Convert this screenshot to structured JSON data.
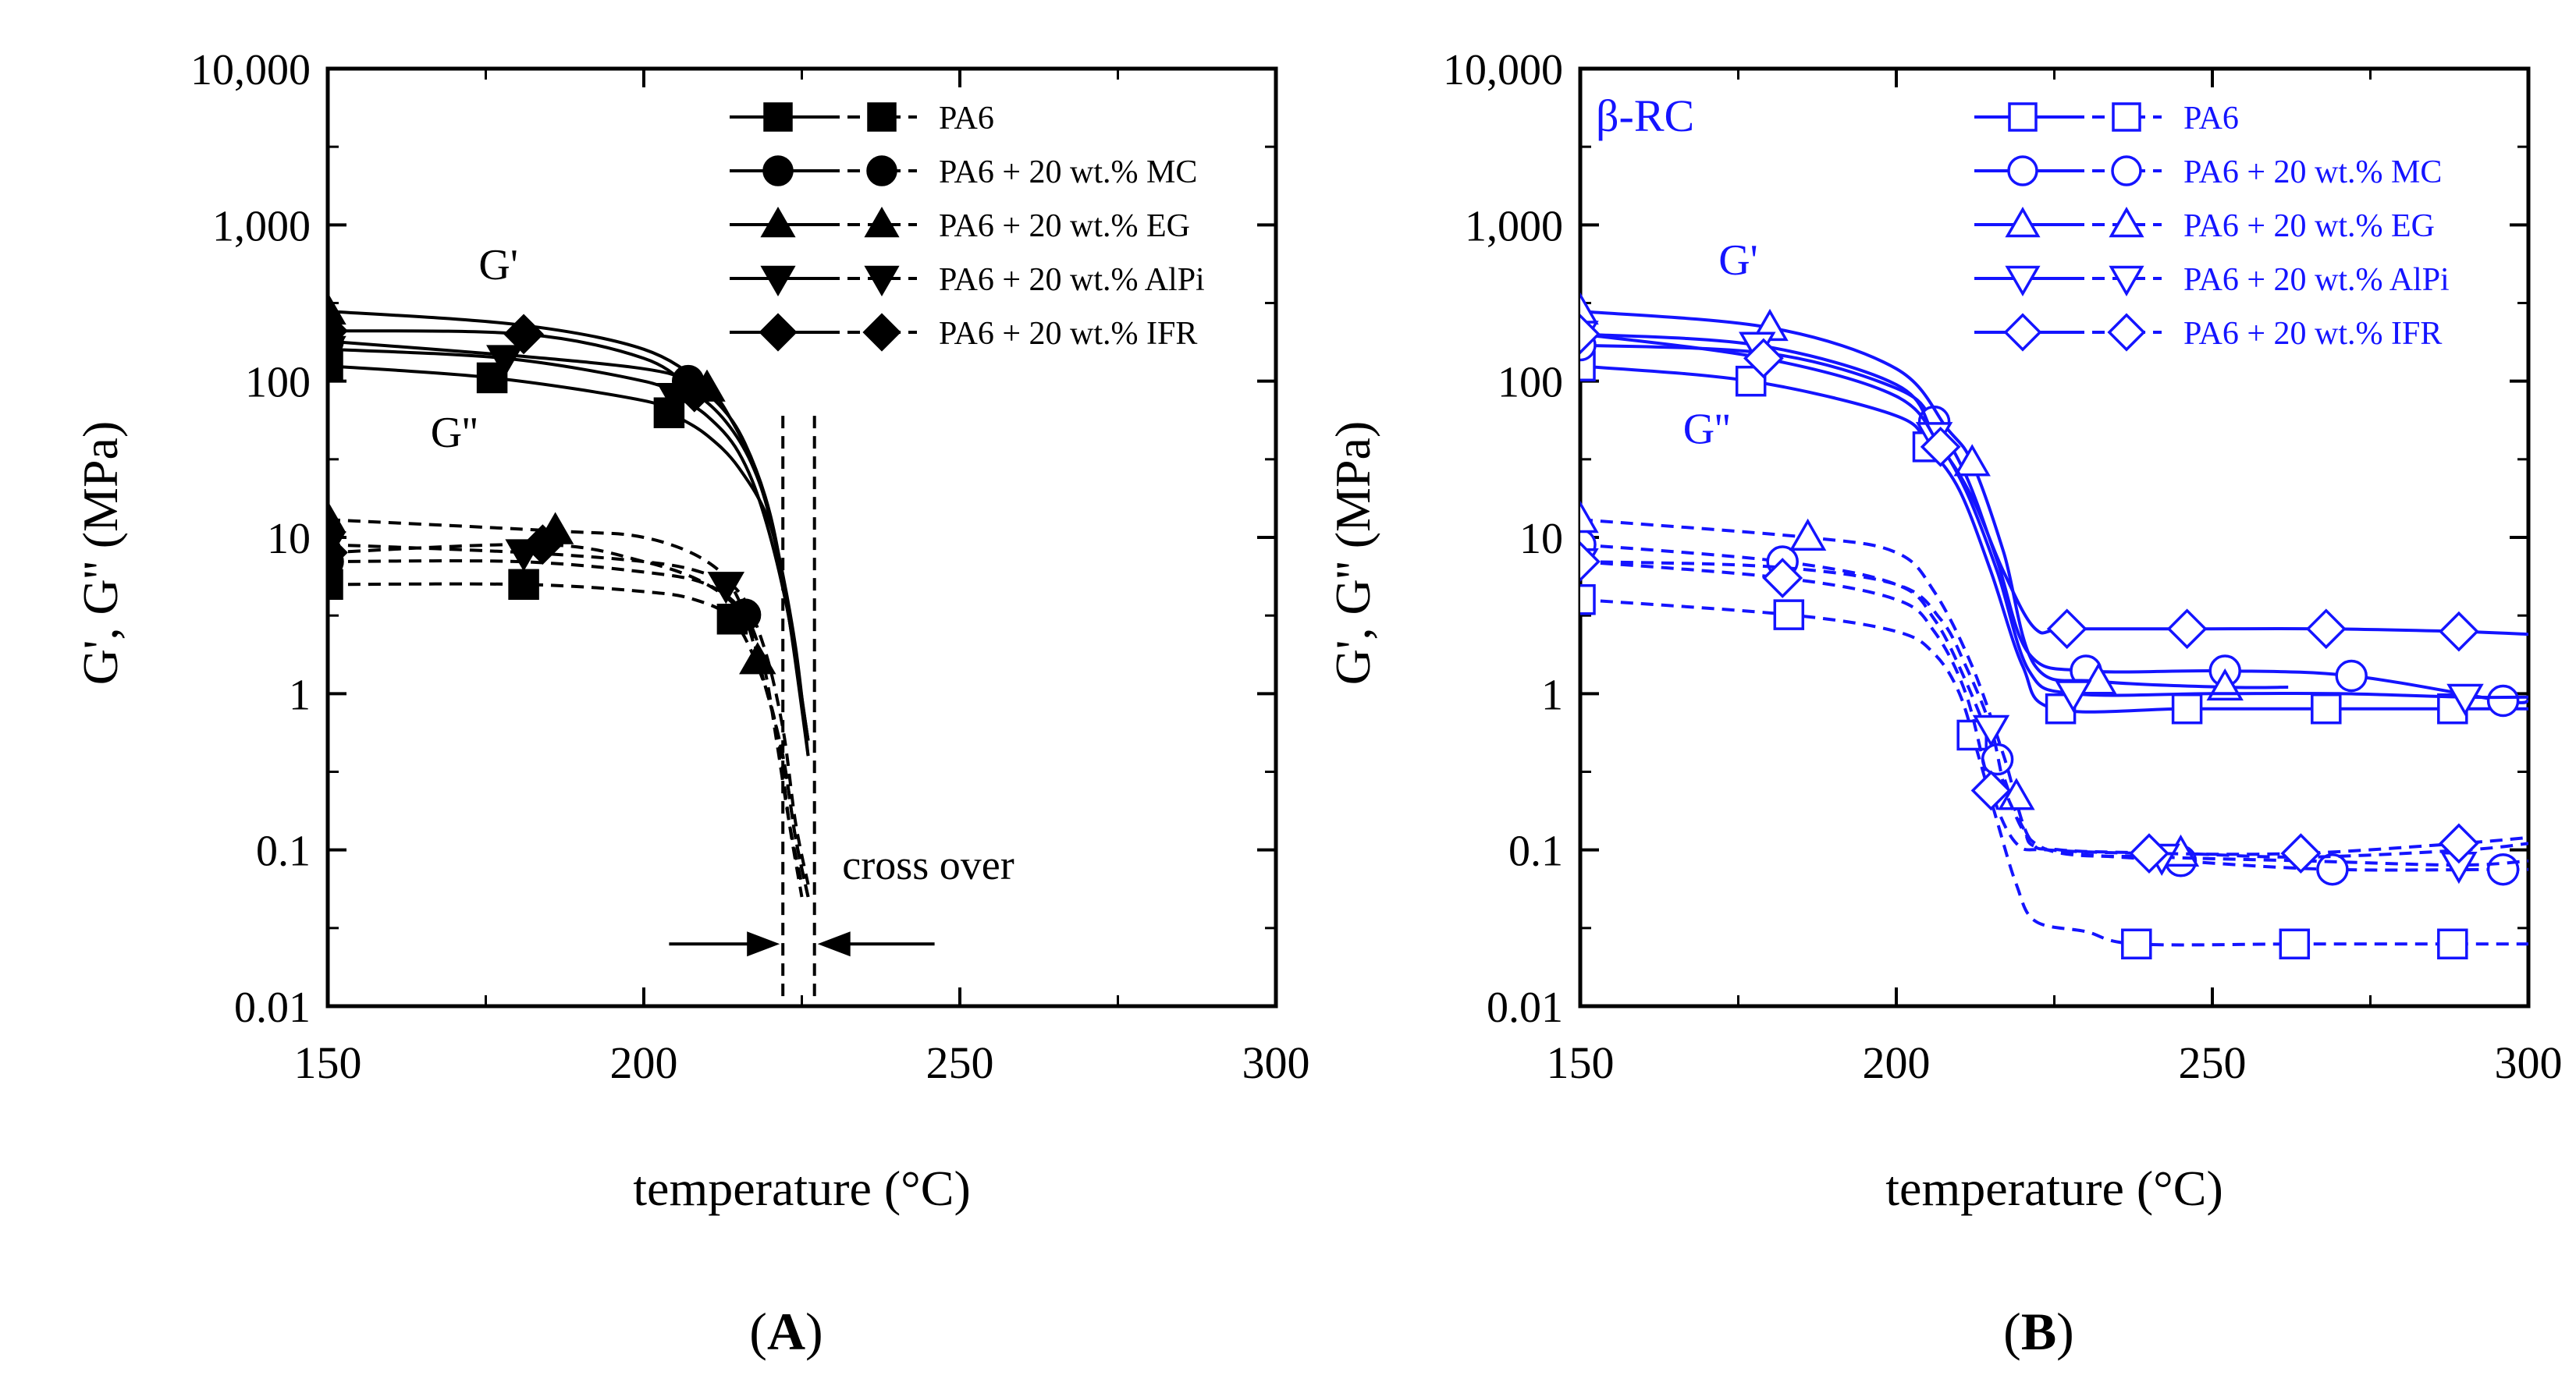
{
  "chart_data": [
    {
      "type": "line",
      "panel_label": "A",
      "color": "#000000",
      "title": "",
      "xlabel": "temperature (°C)",
      "ylabel": "G', G'' (MPa)",
      "xlim": [
        150,
        300
      ],
      "ylim": [
        0.01,
        10000
      ],
      "yscale": "log",
      "x_ticks": [
        150,
        200,
        250,
        300
      ],
      "x_tick_labels": [
        "150",
        "200",
        "250",
        "300"
      ],
      "y_ticks": [
        0.01,
        0.1,
        1,
        10,
        100,
        1000,
        10000
      ],
      "y_tick_labels": [
        "0.01",
        "0.1",
        "1",
        "10",
        "100",
        "1,000",
        "10,000"
      ],
      "legend": [
        "PA6",
        "PA6 + 20 wt.% MC",
        "PA6 + 20 wt.% EG",
        "PA6 + 20 wt.% AlPi",
        "PA6 + 20 wt.% IFR"
      ],
      "legend_position": "top-right",
      "marker_fill": "filled",
      "annotations": {
        "g1": "G'",
        "g2": "G''",
        "corner": "",
        "crossover": "cross over"
      },
      "crossover_x": [
        222,
        227
      ],
      "series": [
        {
          "name": "PA6",
          "marker": "square",
          "var": "G'",
          "x": [
            150,
            176,
            200,
            205,
            210,
            215,
            220,
            223,
            226
          ],
          "y": [
            125,
            105,
            75,
            60,
            45,
            28,
            12,
            3,
            0.5
          ],
          "mx": [
            150,
            176,
            204
          ]
        },
        {
          "name": "PA6 + 20 wt.% MC",
          "marker": "circle",
          "var": "G'",
          "x": [
            150,
            180,
            200,
            207,
            212,
            216,
            220,
            223,
            226
          ],
          "y": [
            180,
            145,
            120,
            100,
            70,
            40,
            14,
            3,
            0.4
          ],
          "mx": [
            150,
            207
          ]
        },
        {
          "name": "PA6 + 20 wt.% EG",
          "marker": "triangle-up",
          "var": "G'",
          "x": [
            150,
            180,
            200,
            210,
            214,
            218,
            221,
            224,
            226
          ],
          "y": [
            280,
            230,
            160,
            90,
            55,
            25,
            9,
            2,
            0.4
          ],
          "mx": [
            150,
            210
          ]
        },
        {
          "name": "PA6 + 20 wt.% AlPi",
          "marker": "triangle-down",
          "var": "G'",
          "x": [
            150,
            178,
            200,
            205,
            210,
            215,
            219,
            223,
            226
          ],
          "y": [
            160,
            140,
            100,
            80,
            60,
            35,
            14,
            3,
            0.5
          ],
          "mx": [
            150,
            178,
            205
          ]
        },
        {
          "name": "PA6 + 20 wt.% IFR",
          "marker": "diamond",
          "var": "G'",
          "x": [
            150,
            181,
            200,
            208,
            213,
            217,
            220,
            223,
            226
          ],
          "y": [
            210,
            200,
            140,
            85,
            55,
            30,
            13,
            3,
            0.5
          ],
          "mx": [
            150,
            181,
            208
          ]
        },
        {
          "name": "PA6",
          "marker": "square",
          "var": "G''",
          "x": [
            150,
            181,
            200,
            208,
            214,
            218,
            221,
            223,
            225
          ],
          "y": [
            5,
            5,
            4.5,
            4,
            3,
            1.5,
            0.6,
            0.15,
            0.05
          ],
          "mx": [
            150,
            181,
            214
          ]
        },
        {
          "name": "PA6 + 20 wt.% MC",
          "marker": "circle",
          "var": "G''",
          "x": [
            150,
            180,
            200,
            210,
            216,
            219,
            221,
            223,
            225
          ],
          "y": [
            7,
            7,
            6,
            5,
            3.2,
            1.5,
            0.5,
            0.15,
            0.06
          ],
          "mx": [
            150,
            216
          ]
        },
        {
          "name": "PA6 + 20 wt.% EG",
          "marker": "triangle-up",
          "var": "G''",
          "x": [
            150,
            186,
            200,
            210,
            215,
            219,
            222,
            224,
            226
          ],
          "y": [
            13,
            11,
            10,
            7,
            4,
            1.2,
            0.4,
            0.12,
            0.05
          ],
          "mx": [
            150,
            186,
            218
          ]
        },
        {
          "name": "PA6 + 20 wt.% AlPi",
          "marker": "triangle-down",
          "var": "G''",
          "x": [
            150,
            181,
            200,
            209,
            215,
            219,
            222,
            224,
            226
          ],
          "y": [
            9,
            8,
            7,
            6,
            4.5,
            2,
            0.6,
            0.15,
            0.06
          ],
          "mx": [
            150,
            181,
            213
          ]
        },
        {
          "name": "PA6 + 20 wt.% IFR",
          "marker": "diamond",
          "var": "G''",
          "x": [
            150,
            184,
            200,
            210,
            216,
            219,
            222,
            224,
            226
          ],
          "y": [
            8,
            9,
            7,
            5,
            3,
            1.2,
            0.4,
            0.12,
            0.05
          ],
          "mx": [
            150,
            184
          ]
        }
      ]
    },
    {
      "type": "line",
      "panel_label": "B",
      "color": "#1414ff",
      "title": "",
      "xlabel": "temperature (°C)",
      "ylabel": "G', G'' (MPa)",
      "xlim": [
        150,
        300
      ],
      "ylim": [
        0.01,
        10000
      ],
      "yscale": "log",
      "x_ticks": [
        150,
        200,
        250,
        300
      ],
      "x_tick_labels": [
        "150",
        "200",
        "250",
        "300"
      ],
      "y_ticks": [
        0.01,
        0.1,
        1,
        10,
        100,
        1000,
        10000
      ],
      "y_tick_labels": [
        "0.01",
        "0.1",
        "1",
        "10",
        "100",
        "1,000",
        "10,000"
      ],
      "legend": [
        "PA6",
        "PA6 + 20 wt.% MC",
        "PA6 + 20 wt.% EG",
        "PA6 + 20 wt.% AlPi",
        "PA6 + 20 wt.% IFR"
      ],
      "legend_position": "top-right",
      "marker_fill": "open",
      "annotations": {
        "g1": "G'",
        "g2": "G''",
        "corner": "β-RC",
        "crossover": ""
      },
      "crossover_x": [],
      "series": [
        {
          "name": "PA6",
          "marker": "square",
          "var": "G'",
          "x": [
            150,
            177,
            200,
            205,
            210,
            215,
            220,
            225,
            246,
            268,
            288,
            300
          ],
          "y": [
            125,
            100,
            60,
            38,
            20,
            6,
            1.5,
            0.8,
            0.8,
            0.8,
            0.8,
            0.8
          ],
          "mx": [
            150,
            177,
            205,
            226,
            246,
            268,
            288
          ]
        },
        {
          "name": "PA6 + 20 wt.% MC",
          "marker": "circle",
          "var": "G'",
          "x": [
            150,
            180,
            200,
            206,
            211,
            216,
            221,
            230,
            252,
            272,
            296,
            300
          ],
          "y": [
            170,
            150,
            90,
            55,
            25,
            7,
            1.8,
            1.4,
            1.4,
            1.3,
            0.9,
            0.9
          ],
          "mx": [
            150,
            206,
            230,
            252,
            272,
            296
          ]
        },
        {
          "name": "PA6 + 20 wt.% EG",
          "marker": "triangle-up",
          "var": "G'",
          "x": [
            150,
            180,
            200,
            208,
            212,
            217,
            222,
            232,
            252,
            262
          ],
          "y": [
            280,
            220,
            120,
            50,
            30,
            8,
            1.5,
            1.2,
            1.1,
            1.1
          ],
          "mx": [
            150,
            180,
            212,
            232,
            252
          ]
        },
        {
          "name": "PA6 + 20 wt.% AlPi",
          "marker": "triangle-down",
          "var": "G'",
          "x": [
            150,
            178,
            200,
            206,
            211,
            216,
            221,
            228,
            250,
            270,
            290,
            300
          ],
          "y": [
            200,
            170,
            95,
            45,
            20,
            6,
            1.4,
            1,
            1,
            1,
            0.95,
            0.95
          ],
          "mx": [
            150,
            178,
            206,
            228,
            290
          ]
        },
        {
          "name": "PA6 + 20 wt.% IFR",
          "marker": "diamond",
          "var": "G'",
          "x": [
            150,
            179,
            200,
            207,
            212,
            217,
            222,
            227,
            246,
            268,
            289,
            300
          ],
          "y": [
            200,
            140,
            80,
            38,
            18,
            6,
            2.6,
            2.6,
            2.6,
            2.6,
            2.5,
            2.4
          ],
          "mx": [
            150,
            179,
            207,
            227,
            246,
            268,
            289
          ]
        },
        {
          "name": "PA6",
          "marker": "square",
          "var": "G''",
          "x": [
            150,
            183,
            200,
            206,
            210,
            213,
            216,
            219,
            222,
            230,
            238,
            263,
            288,
            300
          ],
          "y": [
            4,
            3.2,
            2.5,
            1.8,
            1,
            0.4,
            0.15,
            0.06,
            0.035,
            0.03,
            0.025,
            0.025,
            0.025,
            0.025
          ],
          "mx": [
            150,
            183,
            212,
            238,
            263,
            288
          ]
        },
        {
          "name": "PA6 + 20 wt.% MC",
          "marker": "circle",
          "var": "G''",
          "x": [
            150,
            182,
            200,
            206,
            211,
            216,
            220,
            224,
            245,
            269,
            296,
            300
          ],
          "y": [
            9,
            7,
            5,
            3,
            1.2,
            0.38,
            0.14,
            0.1,
            0.085,
            0.075,
            0.075,
            0.075
          ],
          "mx": [
            150,
            182,
            216,
            245,
            269,
            296
          ]
        },
        {
          "name": "PA6 + 20 wt.% EG",
          "marker": "triangle-up",
          "var": "G''",
          "x": [
            150,
            186,
            200,
            206,
            212,
            217,
            221,
            226,
            245,
            265,
            290,
            300
          ],
          "y": [
            13,
            10,
            8,
            4.5,
            1.5,
            0.4,
            0.12,
            0.1,
            0.095,
            0.09,
            0.1,
            0.11
          ],
          "mx": [
            150,
            186,
            219,
            245
          ]
        },
        {
          "name": "PA6 + 20 wt.% AlPi",
          "marker": "triangle-down",
          "var": "G''",
          "x": [
            150,
            180,
            200,
            207,
            211,
            215,
            218,
            224,
            242,
            265,
            289,
            300
          ],
          "y": [
            7,
            6.5,
            5,
            3,
            1.5,
            0.6,
            0.2,
            0.1,
            0.09,
            0.085,
            0.08,
            0.085
          ],
          "mx": [
            150,
            215,
            242,
            289
          ]
        },
        {
          "name": "PA6 + 20 wt.% IFR",
          "marker": "diamond",
          "var": "G''",
          "x": [
            150,
            182,
            200,
            206,
            211,
            215,
            219,
            224,
            240,
            264,
            289,
            300
          ],
          "y": [
            7,
            5.5,
            4,
            2.5,
            1,
            0.24,
            0.11,
            0.1,
            0.095,
            0.095,
            0.11,
            0.12
          ],
          "mx": [
            150,
            182,
            215,
            240,
            264,
            289
          ]
        }
      ]
    }
  ]
}
